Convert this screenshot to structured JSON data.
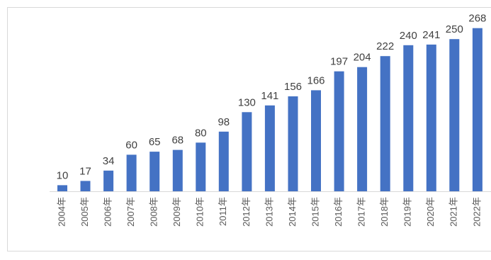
{
  "chart_data": {
    "type": "bar",
    "categories": [
      "2004年",
      "2005年",
      "2006年",
      "2007年",
      "2008年",
      "2009年",
      "2010年",
      "2011年",
      "2012年",
      "2013年",
      "2014年",
      "2015年",
      "2016年",
      "2017年",
      "2018年",
      "2019年",
      "2020年",
      "2021年",
      "2022年"
    ],
    "values": [
      10,
      17,
      34,
      60,
      65,
      68,
      80,
      98,
      130,
      141,
      156,
      166,
      197,
      204,
      222,
      240,
      241,
      250,
      268
    ],
    "title": "",
    "xlabel": "",
    "ylabel": "",
    "ylim": [
      0,
      270
    ],
    "grid": false,
    "data_labels": true,
    "bar_color": "#4472c4",
    "axis_color": "#d9d9d9"
  }
}
